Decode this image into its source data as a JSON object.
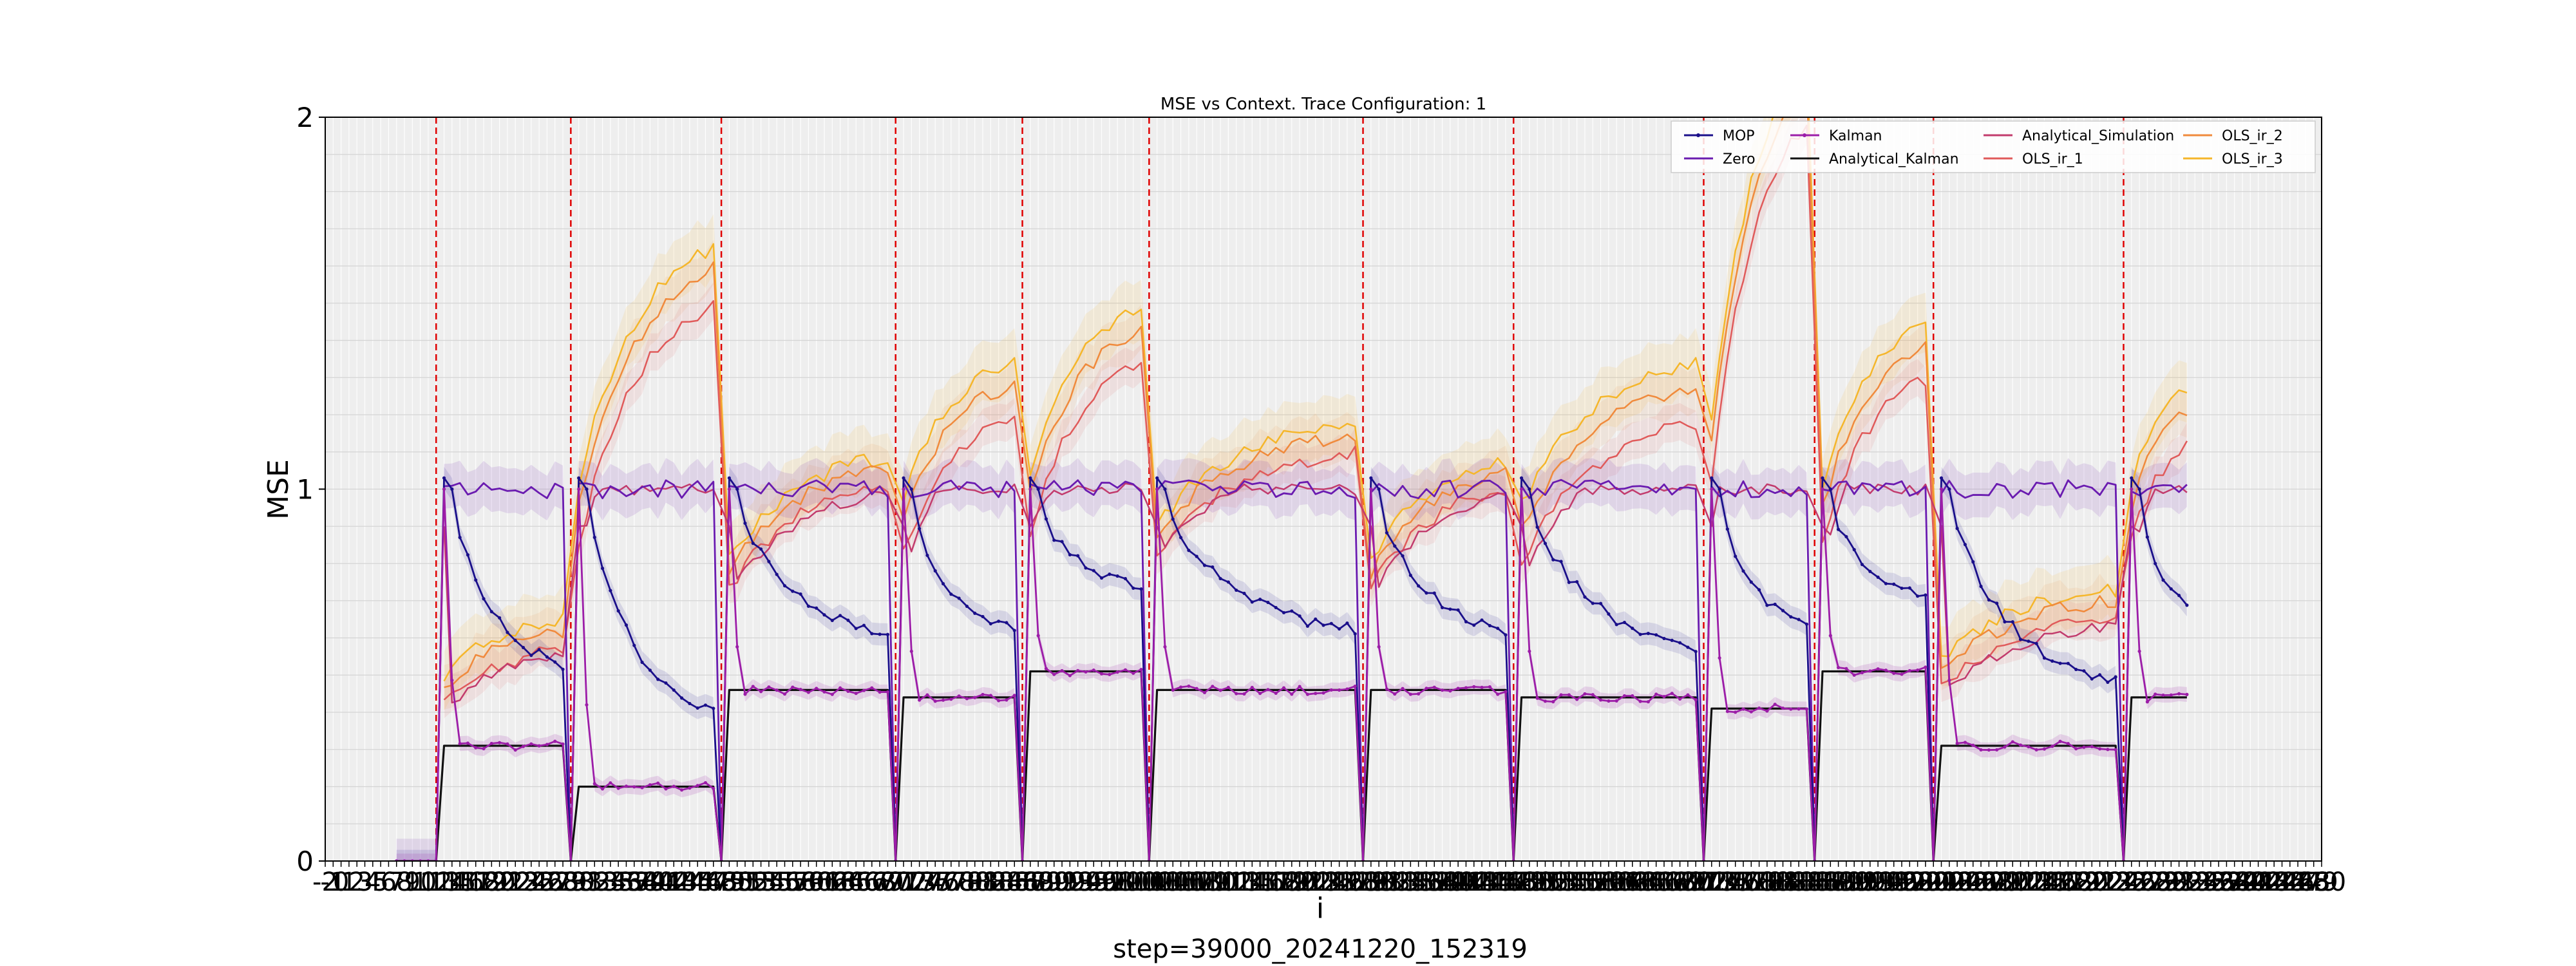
{
  "chart_data": {
    "type": "line",
    "title": "MSE vs Context. Trace Configuration: 1",
    "xlabel": "i",
    "ylabel": "MSE",
    "footer": "step=39000_20241220_152319",
    "xlim": [
      -2,
      250
    ],
    "ylim": [
      0,
      2
    ],
    "yticks": [
      0,
      1,
      2
    ],
    "grid": true,
    "legend_position": "top-right",
    "context_boundaries": [
      12,
      29,
      48,
      70,
      86,
      102,
      129,
      148,
      172,
      186,
      201,
      225
    ],
    "segments": [
      {
        "start": 12,
        "end": 29,
        "kalman": 0.31,
        "mop_end": 0.49,
        "ols_end": 0.62
      },
      {
        "start": 29,
        "end": 48,
        "kalman": 0.2,
        "mop_end": 0.35,
        "ols_end": 1.6
      },
      {
        "start": 48,
        "end": 70,
        "kalman": 0.46,
        "mop_end": 0.59,
        "ols_end": 1.06
      },
      {
        "start": 70,
        "end": 86,
        "kalman": 0.44,
        "mop_end": 0.59,
        "ols_end": 1.29
      },
      {
        "start": 86,
        "end": 102,
        "kalman": 0.51,
        "mop_end": 0.72,
        "ols_end": 1.44
      },
      {
        "start": 102,
        "end": 129,
        "kalman": 0.46,
        "mop_end": 0.6,
        "ols_end": 1.15
      },
      {
        "start": 129,
        "end": 148,
        "kalman": 0.46,
        "mop_end": 0.59,
        "ols_end": 1.05
      },
      {
        "start": 148,
        "end": 172,
        "kalman": 0.44,
        "mop_end": 0.55,
        "ols_end": 1.28
      },
      {
        "start": 172,
        "end": 186,
        "kalman": 0.41,
        "mop_end": 0.6,
        "ols_end": 2.1
      },
      {
        "start": 186,
        "end": 201,
        "kalman": 0.51,
        "mop_end": 0.7,
        "ols_end": 1.4
      },
      {
        "start": 201,
        "end": 225,
        "kalman": 0.31,
        "mop_end": 0.45,
        "ols_end": 0.7
      },
      {
        "start": 225,
        "end": 234,
        "kalman": 0.44,
        "mop_end": 0.65,
        "ols_end": 1.22
      }
    ],
    "series": [
      {
        "name": "MOP",
        "color": "#1a0f8a",
        "marker": "dot"
      },
      {
        "name": "Zero",
        "color": "#6a1bb0"
      },
      {
        "name": "Kalman",
        "color": "#9c1da8",
        "marker": "dot"
      },
      {
        "name": "Analytical_Kalman",
        "color": "#111111"
      },
      {
        "name": "Analytical_Simulation",
        "color": "#c23b6d"
      },
      {
        "name": "OLS_ir_1",
        "color": "#e05a5a"
      },
      {
        "name": "OLS_ir_2",
        "color": "#f08a3c"
      },
      {
        "name": "OLS_ir_3",
        "color": "#f5b62a"
      }
    ]
  }
}
